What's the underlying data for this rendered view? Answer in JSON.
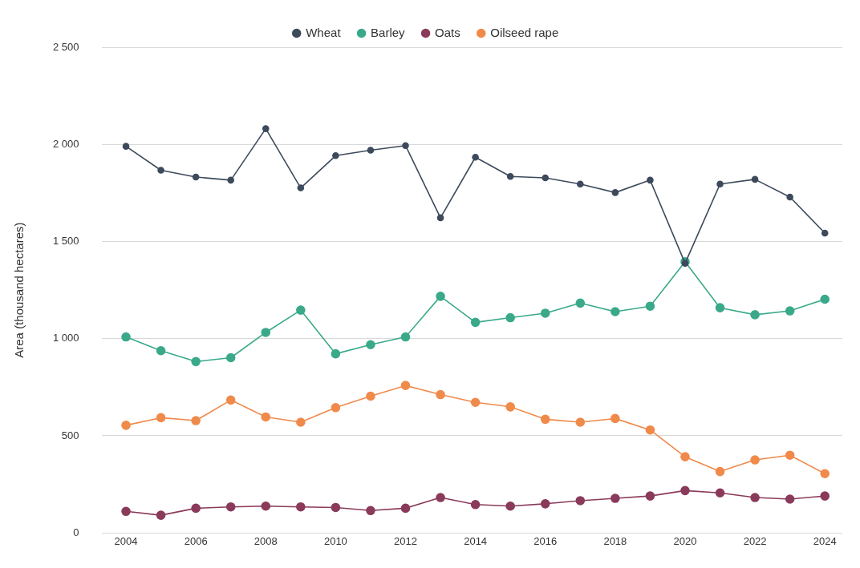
{
  "chart_data": {
    "type": "line",
    "ylabel": "Area (thousand hectares)",
    "x": [
      2004,
      2005,
      2006,
      2007,
      2008,
      2009,
      2010,
      2011,
      2012,
      2013,
      2014,
      2015,
      2016,
      2017,
      2018,
      2019,
      2020,
      2021,
      2022,
      2023,
      2024
    ],
    "series": [
      {
        "name": "Wheat",
        "color": "#3d4a5c",
        "values": [
          1990,
          1867,
          1832,
          1816,
          2081,
          1776,
          1942,
          1970,
          1994,
          1622,
          1934,
          1835,
          1828,
          1796,
          1752,
          1816,
          1388,
          1796,
          1820,
          1729,
          1543
        ]
      },
      {
        "name": "Barley",
        "color": "#3aa98a",
        "values": [
          1009,
          938,
          882,
          902,
          1032,
          1147,
          922,
          969,
          1009,
          1218,
          1084,
          1108,
          1131,
          1183,
          1139,
          1167,
          1396,
          1159,
          1123,
          1143,
          1203
        ]
      },
      {
        "name": "Oats",
        "color": "#8a3a5a",
        "values": [
          111,
          91,
          127,
          134,
          138,
          134,
          131,
          115,
          127,
          182,
          146,
          138,
          150,
          166,
          178,
          190,
          218,
          206,
          182,
          174,
          190
        ]
      },
      {
        "name": "Oilseed rape",
        "color": "#f08a4b",
        "values": [
          554,
          593,
          578,
          684,
          597,
          570,
          645,
          704,
          759,
          712,
          672,
          649,
          585,
          570,
          589,
          530,
          392,
          316,
          376,
          400,
          305
        ]
      }
    ],
    "xlim": [
      2003.3,
      2024.5
    ],
    "xticks": [
      2004,
      2006,
      2008,
      2010,
      2012,
      2014,
      2016,
      2018,
      2020,
      2022,
      2024
    ],
    "ylim": [
      0,
      2500
    ],
    "yticks": [
      0,
      500,
      {
        "value": 1000,
        "label": "1 000"
      },
      {
        "value": 1500,
        "label": "1 500"
      },
      {
        "value": 2000,
        "label": "2 000"
      },
      {
        "value": 2500,
        "label": "2 500"
      }
    ],
    "grid": "y",
    "legend": "top",
    "marker": "circle",
    "line_style": "solid"
  }
}
